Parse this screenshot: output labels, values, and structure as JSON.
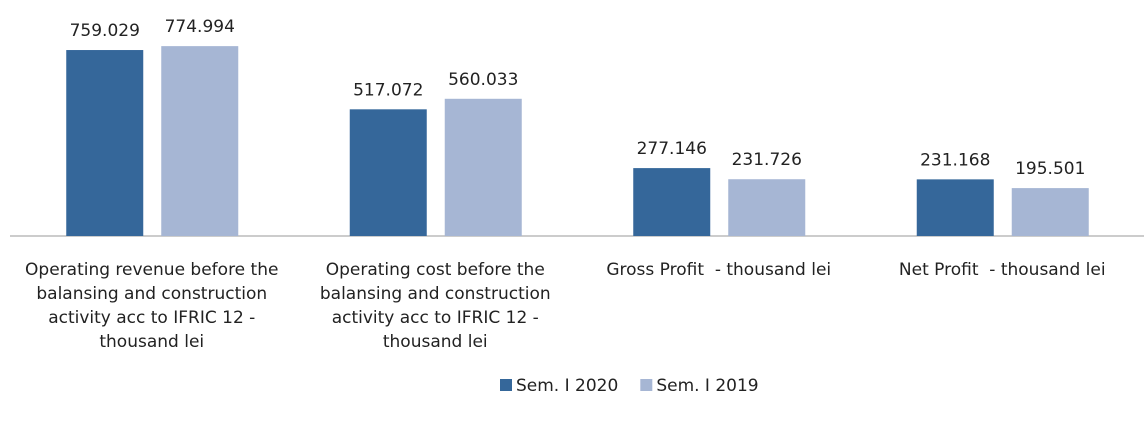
{
  "chart_data": {
    "type": "bar",
    "categories": [
      "Operating revenue before the balansing and construction activity acc to IFRIC 12 - thousand lei",
      "Operating cost before the balansing and construction activity acc to IFRIC 12 - thousand lei",
      "Gross Profit  - thousand lei",
      "Net Profit  - thousand lei"
    ],
    "series": [
      {
        "name": "Sem. I 2020",
        "color": "#35679a",
        "values": [
          759.029,
          517.072,
          277.146,
          231.168
        ]
      },
      {
        "name": "Sem. I 2019",
        "color": "#a6b6d4",
        "values": [
          774.994,
          560.033,
          231.726,
          195.501
        ]
      }
    ],
    "legend": "bottom"
  }
}
